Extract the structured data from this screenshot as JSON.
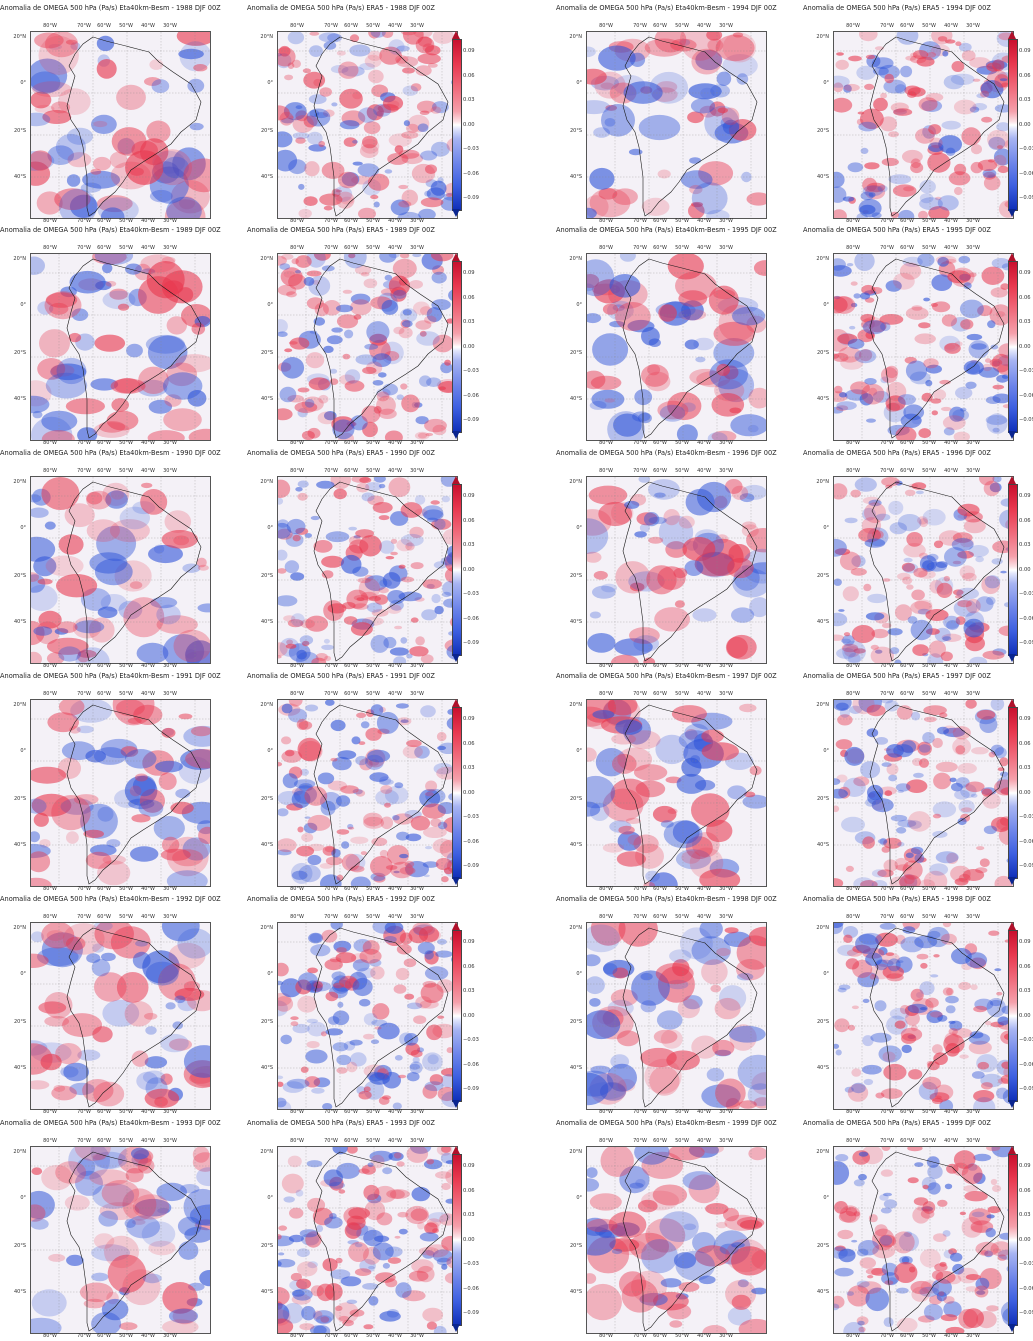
{
  "figure": {
    "columns": [
      {
        "model_titles": [
          "Anomalia de OMEGA 500 hPa (Pa/s) Eta40km-Besm - 1988 DJF 00Z",
          "Anomalia de OMEGA 500 hPa (Pa/s) Eta40km-Besm - 1989 DJF 00Z",
          "Anomalia de OMEGA 500 hPa (Pa/s) Eta40km-Besm - 1990 DJF 00Z",
          "Anomalia de OMEGA 500 hPa (Pa/s) Eta40km-Besm - 1991 DJF 00Z",
          "Anomalia de OMEGA 500 hPa (Pa/s) Eta40km-Besm - 1992 DJF 00Z",
          "Anomalia de OMEGA 500 hPa (Pa/s) Eta40km-Besm - 1993 DJF 00Z"
        ],
        "era_titles": [
          "Anomalia de OMEGA 500 hPa (Pa/s) ERA5 - 1988 DJF 00Z",
          "Anomalia de OMEGA 500 hPa (Pa/s) ERA5 - 1989 DJF 00Z",
          "Anomalia de OMEGA 500 hPa (Pa/s) ERA5 - 1990 DJF 00Z",
          "Anomalia de OMEGA 500 hPa (Pa/s) ERA5 - 1991 DJF 00Z",
          "Anomalia de OMEGA 500 hPa (Pa/s) ERA5 - 1992 DJF 00Z",
          "Anomalia de OMEGA 500 hPa (Pa/s) ERA5 - 1993 DJF 00Z"
        ]
      },
      {
        "model_titles": [
          "Anomalia de OMEGA 500 hPa (Pa/s) Eta40km-Besm - 1994 DJF 00Z",
          "Anomalia de OMEGA 500 hPa (Pa/s) Eta40km-Besm - 1995 DJF 00Z",
          "Anomalia de OMEGA 500 hPa (Pa/s) Eta40km-Besm - 1996 DJF 00Z",
          "Anomalia de OMEGA 500 hPa (Pa/s) Eta40km-Besm - 1997 DJF 00Z",
          "Anomalia de OMEGA 500 hPa (Pa/s) Eta40km-Besm - 1998 DJF 00Z",
          "Anomalia de OMEGA 500 hPa (Pa/s) Eta40km-Besm - 1999 DJF 00Z"
        ],
        "era_titles": [
          "Anomalia de OMEGA 500 hPa (Pa/s) ERA5 - 1994 DJF 00Z",
          "Anomalia de OMEGA 500 hPa (Pa/s) ERA5 - 1995 DJF 00Z",
          "Anomalia de OMEGA 500 hPa (Pa/s) ERA5 - 1996 DJF 00Z",
          "Anomalia de OMEGA 500 hPa (Pa/s) ERA5 - 1997 DJF 00Z",
          "Anomalia de OMEGA 500 hPa (Pa/s) ERA5 - 1998 DJF 00Z",
          "Anomalia de OMEGA 500 hPa (Pa/s) ERA5 - 1999 DJF 00Z"
        ]
      }
    ],
    "lon_ticks": [
      "80°W",
      "70°W",
      "60°W",
      "50°W",
      "40°W",
      "30°W"
    ],
    "lat_ticks": [
      "20°N",
      "0°",
      "20°S",
      "40°S"
    ],
    "colorbar_ticks": [
      "0.09",
      "0.06",
      "0.03",
      "0.00",
      "−0.03",
      "−0.06",
      "−0.09"
    ],
    "colors": {
      "positive": "#e8384f",
      "negative": "#2e54d8",
      "neutral": "#f4f1f7",
      "coast": "#1a1a1a"
    }
  }
}
